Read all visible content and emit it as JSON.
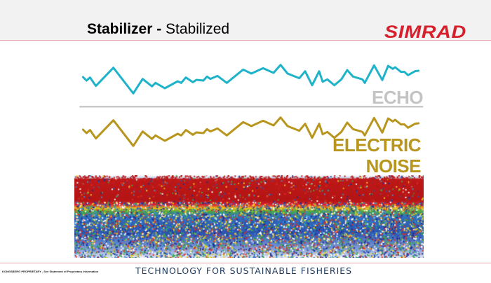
{
  "slide": {
    "title_bold": "Stabilizer - ",
    "title_regular": "Stabilized",
    "logo": "SIMRAD"
  },
  "labels": {
    "echo": "ECHO",
    "noise_line1": "ELECTRIC",
    "noise_line2": "NOISE"
  },
  "colors": {
    "echo": "#1fb3c9",
    "noise": "#b8951c",
    "divider": "#bdbdbd",
    "brand": "#d6202b"
  },
  "footer": {
    "left": "KONGSBERG PROPRIETARY - See Statement of Proprietary Information",
    "center": "TECHNOLOGY FOR SUSTAINABLE FISHERIES"
  }
}
